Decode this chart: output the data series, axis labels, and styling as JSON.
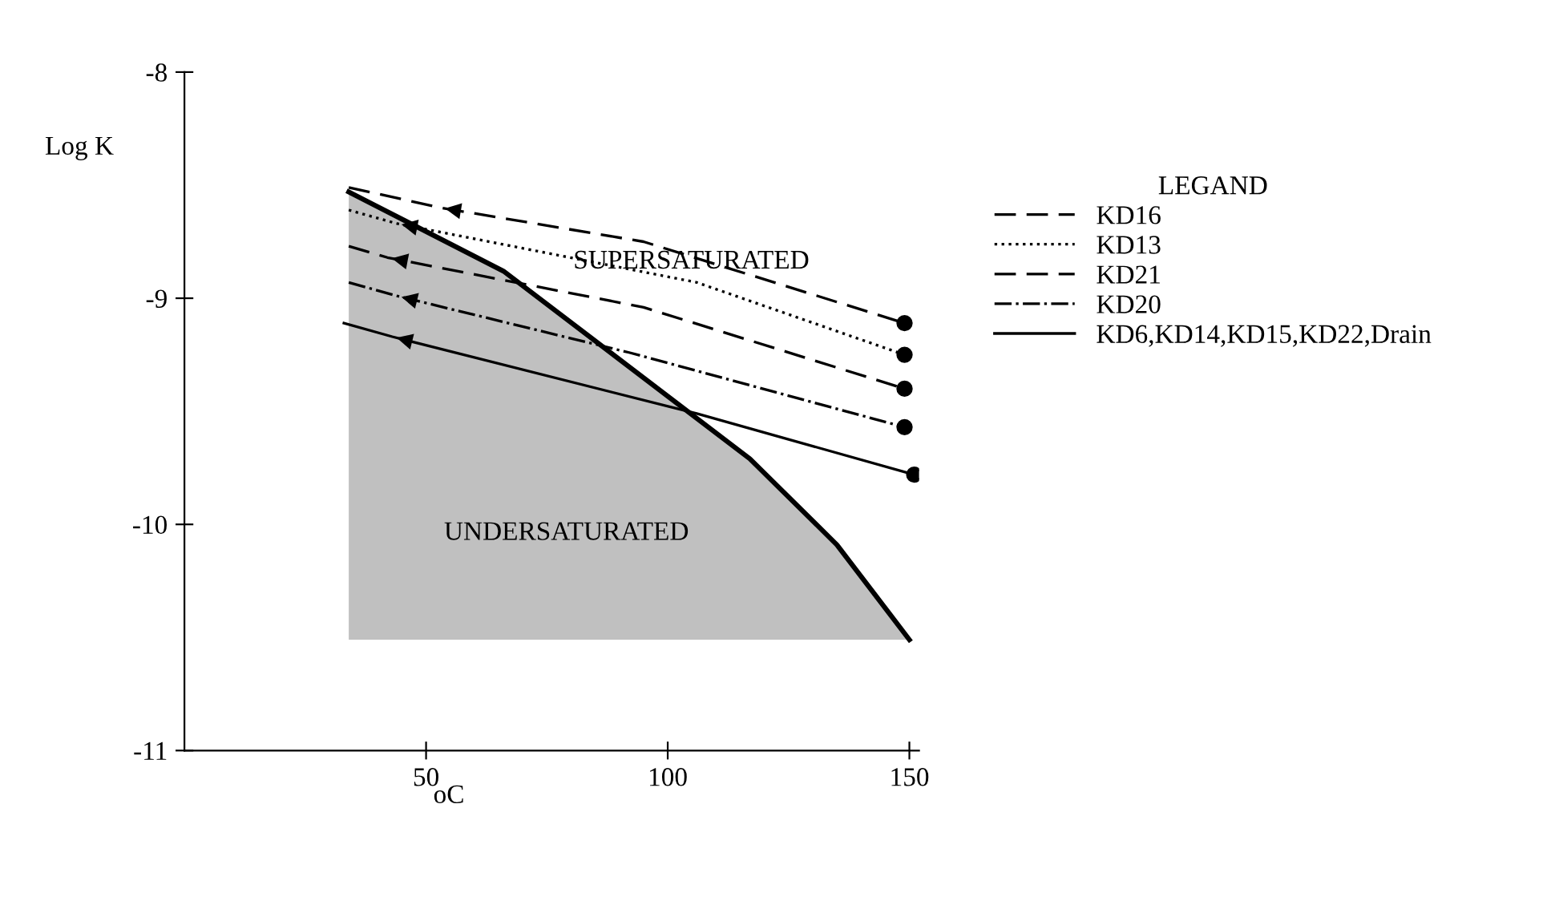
{
  "chart_data": {
    "type": "line",
    "xlabel": "oC",
    "ylabel": "Log K",
    "legend_title": "LEGAND",
    "legend": "right",
    "grid": false,
    "xlim": [
      0,
      152
    ],
    "ylim": [
      -11,
      -8
    ],
    "xticks": [
      50,
      100,
      150
    ],
    "yticks": [
      -8,
      -9,
      -10,
      -11
    ],
    "series": [
      {
        "name": "KD16",
        "color": "#000000",
        "line_style": "dashed",
        "marker": "none",
        "x": [
          34,
          53,
          95,
          149
        ],
        "values": [
          -8.51,
          -8.6,
          -8.75,
          -9.11
        ]
      },
      {
        "name": "KD13",
        "color": "#000000",
        "line_style": "dotted",
        "marker": "none",
        "x": [
          34,
          44,
          106,
          149
        ],
        "values": [
          -8.61,
          -8.67,
          -8.93,
          -9.25
        ]
      },
      {
        "name": "KD21",
        "color": "#000000",
        "line_style": "dashed",
        "marker": "none",
        "x": [
          34,
          42,
          95,
          149
        ],
        "values": [
          -8.77,
          -8.82,
          -9.04,
          -9.4
        ]
      },
      {
        "name": "KD20",
        "color": "#000000",
        "line_style": "dashdot",
        "marker": "none",
        "x": [
          34,
          44,
          92,
          149
        ],
        "values": [
          -8.93,
          -8.99,
          -9.24,
          -9.57
        ]
      },
      {
        "name": "KD6,KD14,KD15,KD22,Drain",
        "color": "#000000",
        "line_style": "solid",
        "marker": "none",
        "x": [
          33,
          43,
          106,
          151
        ],
        "values": [
          -9.11,
          -9.17,
          -9.51,
          -9.78
        ]
      },
      {
        "type": "scatter",
        "color": "#000000",
        "marker": "circle",
        "x": [
          149,
          149,
          149,
          149,
          151
        ],
        "values": [
          -9.11,
          -9.25,
          -9.4,
          -9.57,
          -9.78
        ]
      },
      {
        "color": "#000000",
        "line_style": "solid",
        "marker": "none",
        "x": [
          34,
          66,
          117,
          135,
          150
        ],
        "values": [
          -8.53,
          -8.88,
          -9.71,
          -10.09,
          -10.51
        ],
        "lower": [
          -10.51,
          -10.51,
          -10.51,
          -10.51,
          -10.51
        ],
        "upper": [
          -8.53,
          -8.88,
          -9.71,
          -10.09,
          -10.51
        ]
      }
    ],
    "annotations": [
      "SUPERSATURATED",
      "UNDERSATURATED"
    ]
  }
}
